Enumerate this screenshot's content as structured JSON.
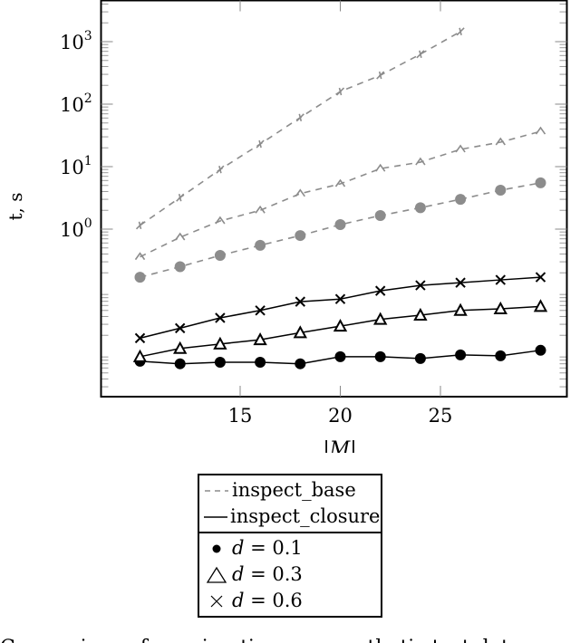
{
  "chart_data": {
    "type": "line",
    "title": "",
    "xlabel": "|M|",
    "ylabel": "t, s",
    "yscale": "log",
    "xlim": [
      8.1,
      31.5
    ],
    "ylim": [
      0.0024,
      5000
    ],
    "x_ticks": [
      15,
      20,
      25
    ],
    "y_ticks": [
      {
        "value": 1,
        "label": "10^0"
      },
      {
        "value": 10,
        "label": "10^1"
      },
      {
        "value": 100,
        "label": "10^2"
      },
      {
        "value": 1000,
        "label": "10^3"
      }
    ],
    "grid": false,
    "legend_position": "below",
    "x": [
      10,
      12,
      14,
      16,
      18,
      20,
      22,
      24,
      26,
      28,
      30
    ],
    "series": [
      {
        "name": "inspect_base, d = 0.1",
        "method": "inspect_base",
        "d": 0.1,
        "style": "dashed",
        "color": "#8c8c8c",
        "marker": "circle",
        "x": [
          10,
          12,
          14,
          16,
          18,
          20,
          22,
          24,
          26,
          28,
          30
        ],
        "values": [
          0.17,
          0.25,
          0.38,
          0.55,
          0.79,
          1.18,
          1.65,
          2.2,
          3.0,
          4.2,
          5.5
        ]
      },
      {
        "name": "inspect_base, d = 0.3",
        "method": "inspect_base",
        "d": 0.3,
        "style": "dashed",
        "color": "#8c8c8c",
        "marker": "triangle",
        "x": [
          10,
          12,
          14,
          16,
          18,
          20,
          22,
          24,
          26,
          28,
          30
        ],
        "values": [
          0.36,
          0.74,
          1.35,
          2.0,
          3.7,
          5.3,
          9.3,
          11.8,
          18.9,
          24.6,
          36.7
        ]
      },
      {
        "name": "inspect_base, d = 0.6",
        "method": "inspect_base",
        "d": 0.6,
        "style": "dashed",
        "color": "#8c8c8c",
        "marker": "cross",
        "x": [
          10,
          12,
          14,
          16,
          18,
          20,
          22,
          24,
          26
        ],
        "values": [
          1.15,
          3.2,
          9.0,
          23,
          61,
          159,
          290,
          630,
          1450
        ]
      },
      {
        "name": "inspect_closure, d = 0.1",
        "method": "inspect_closure",
        "d": 0.1,
        "style": "solid",
        "color": "#000000",
        "marker": "circle",
        "x": [
          10,
          12,
          14,
          16,
          18,
          20,
          22,
          24,
          26,
          28,
          30
        ],
        "values": [
          0.0077,
          0.007,
          0.0074,
          0.0074,
          0.007,
          0.0091,
          0.0091,
          0.0085,
          0.0097,
          0.0094,
          0.0115
        ]
      },
      {
        "name": "inspect_closure, d = 0.3",
        "method": "inspect_closure",
        "d": 0.3,
        "style": "solid",
        "color": "#000000",
        "marker": "triangle",
        "x": [
          10,
          12,
          14,
          16,
          18,
          20,
          22,
          24,
          26,
          28,
          30
        ],
        "values": [
          0.0091,
          0.0123,
          0.0145,
          0.017,
          0.022,
          0.028,
          0.036,
          0.042,
          0.05,
          0.053,
          0.058
        ]
      },
      {
        "name": "inspect_closure, d = 0.6",
        "method": "inspect_closure",
        "d": 0.6,
        "style": "solid",
        "color": "#000000",
        "marker": "cross",
        "x": [
          10,
          12,
          14,
          16,
          18,
          20,
          22,
          24,
          26,
          28,
          30
        ],
        "values": [
          0.018,
          0.026,
          0.038,
          0.05,
          0.069,
          0.076,
          0.103,
          0.126,
          0.139,
          0.154,
          0.17
        ]
      }
    ]
  },
  "axes": {
    "xlabel": "|M|",
    "ylabel": "t, s",
    "x_tick_labels": [
      "15",
      "20",
      "25"
    ],
    "y_tick_labels": [
      {
        "base": "10",
        "exp": "0"
      },
      {
        "base": "10",
        "exp": "1"
      },
      {
        "base": "10",
        "exp": "2"
      },
      {
        "base": "10",
        "exp": "3"
      }
    ]
  },
  "legend": {
    "methods": [
      {
        "symbol": "dashed-line",
        "label": "inspect_base",
        "color": "#8c8c8c"
      },
      {
        "symbol": "solid-line",
        "label": "inspect_closure",
        "color": "#000000"
      }
    ],
    "densities": [
      {
        "symbol": "filled-circle",
        "var": "d",
        "eq": " = 0.1"
      },
      {
        "symbol": "triangle",
        "var": "d",
        "eq": " = 0.3"
      },
      {
        "symbol": "cross",
        "var": "d",
        "eq": " = 0.6"
      }
    ]
  },
  "caption": {
    "text": "Comparison of running times on synthetic test data..."
  },
  "colors": {
    "base": "#8c8c8c",
    "closure": "#000000",
    "axis": "#000000",
    "minor_tick": "#9a9a9a"
  }
}
